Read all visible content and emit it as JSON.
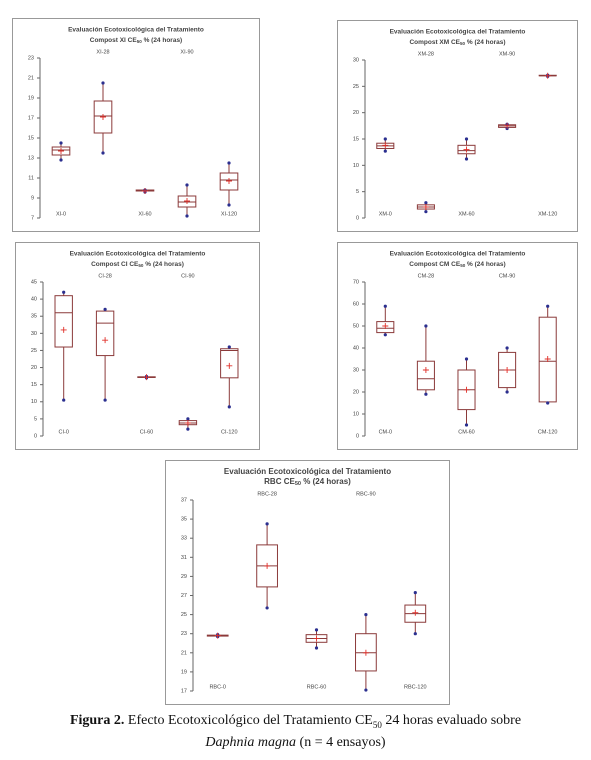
{
  "chart_data": [
    {
      "type": "box",
      "title": "Evaluación Ecotoxicológica del Tratamiento",
      "subtitle": [
        "Compost XI CE",
        "50",
        " % (24 horas)"
      ],
      "categories": [
        "XI-0",
        "XI-28",
        "XI-60",
        "XI-90",
        "XI-120"
      ],
      "boxes": [
        {
          "min": 12.8,
          "q1": 13.3,
          "median": 13.8,
          "q3": 14.1,
          "max": 14.5,
          "mean": 13.7
        },
        {
          "min": 13.5,
          "q1": 15.5,
          "median": 17.2,
          "q3": 18.7,
          "max": 20.5,
          "mean": 17.1
        },
        {
          "min": 9.6,
          "q1": 9.7,
          "median": 9.7,
          "q3": 9.8,
          "max": 9.8,
          "mean": 9.7
        },
        {
          "min": 7.2,
          "q1": 8.1,
          "median": 8.6,
          "q3": 9.2,
          "max": 10.3,
          "mean": 8.7
        },
        {
          "min": 8.3,
          "q1": 9.8,
          "median": 10.8,
          "q3": 11.5,
          "max": 12.5,
          "mean": 10.7
        }
      ],
      "ylim": [
        7,
        23
      ],
      "yticks": [
        7,
        9,
        11,
        13,
        15,
        17,
        19,
        21,
        23
      ],
      "color": "#8b3a3a",
      "whisker_color": "#2b2f8f",
      "mean_color": "#e0302a"
    },
    {
      "type": "box",
      "title": "Evaluación Ecotoxicológica del Tratamiento",
      "subtitle": [
        "Compost XM CE",
        "50",
        " % (24 horas)"
      ],
      "categories": [
        "XM-0",
        "XM-28",
        "XM-60",
        "XM-90",
        "XM-120"
      ],
      "boxes": [
        {
          "min": 12.7,
          "q1": 13.2,
          "median": 13.7,
          "q3": 14.2,
          "max": 15,
          "mean": 13.8
        },
        {
          "min": 1.2,
          "q1": 1.7,
          "median": 2.1,
          "q3": 2.5,
          "max": 2.9,
          "mean": 2.1
        },
        {
          "min": 11.2,
          "q1": 12.2,
          "median": 12.8,
          "q3": 13.8,
          "max": 15,
          "mean": 13
        },
        {
          "min": 17,
          "q1": 17.2,
          "median": 17.5,
          "q3": 17.7,
          "max": 17.8,
          "mean": 17.5
        },
        {
          "min": 26.9,
          "q1": 27,
          "median": 27,
          "q3": 27.1,
          "max": 27.1,
          "mean": 27
        }
      ],
      "ylim": [
        0,
        30
      ],
      "yticks": [
        0,
        5,
        10,
        15,
        20,
        25,
        30
      ],
      "color": "#8b3a3a",
      "whisker_color": "#2b2f8f",
      "mean_color": "#e0302a"
    },
    {
      "type": "box",
      "title": "Evaluación Ecotoxicológica del Tratamiento",
      "subtitle": [
        "Compost CI CE",
        "50",
        " % (24 horas)"
      ],
      "categories": [
        "CI-0",
        "CI-28",
        "CI-60",
        "CI-90",
        "CI-120"
      ],
      "boxes": [
        {
          "min": 10.5,
          "q1": 26,
          "median": 36,
          "q3": 41,
          "max": 42,
          "mean": 31
        },
        {
          "min": 10.5,
          "q1": 23.5,
          "median": 33,
          "q3": 36.5,
          "max": 37,
          "mean": 28
        },
        {
          "min": 17,
          "q1": 17.1,
          "median": 17.2,
          "q3": 17.3,
          "max": 17.4,
          "mean": 17.2
        },
        {
          "min": 2,
          "q1": 3.3,
          "median": 3.8,
          "q3": 4.5,
          "max": 5,
          "mean": 3.8
        },
        {
          "min": 8.5,
          "q1": 17,
          "median": 25,
          "q3": 25.5,
          "max": 26,
          "mean": 20.5
        }
      ],
      "ylim": [
        0,
        45
      ],
      "yticks": [
        0,
        5,
        10,
        15,
        20,
        25,
        30,
        35,
        40,
        45
      ],
      "color": "#8b3a3a",
      "whisker_color": "#2b2f8f",
      "mean_color": "#e0302a"
    },
    {
      "type": "box",
      "title": "Evaluación Ecotoxicológica del Tratamiento",
      "subtitle": [
        "Compost CM CE",
        "50",
        " % (24 horas)"
      ],
      "categories": [
        "CM-0",
        "CM-28",
        "CM-60",
        "CM-90",
        "CM-120"
      ],
      "boxes": [
        {
          "min": 46,
          "q1": 47,
          "median": 49,
          "q3": 52,
          "max": 59,
          "mean": 50
        },
        {
          "min": 19,
          "q1": 21,
          "median": 26,
          "q3": 34,
          "max": 50,
          "mean": 30
        },
        {
          "min": 5,
          "q1": 12,
          "median": 21,
          "q3": 30,
          "max": 35,
          "mean": 21
        },
        {
          "min": 20,
          "q1": 22,
          "median": 30,
          "q3": 38,
          "max": 40,
          "mean": 30
        },
        {
          "min": 15,
          "q1": 15.5,
          "median": 34,
          "q3": 54,
          "max": 59,
          "mean": 35
        }
      ],
      "ylim": [
        0,
        70
      ],
      "yticks": [
        0,
        10,
        20,
        30,
        40,
        50,
        60,
        70
      ],
      "color": "#8b3a3a",
      "whisker_color": "#2b2f8f",
      "mean_color": "#e0302a"
    },
    {
      "type": "box",
      "title": "Evaluación Ecotoxicológica del Tratamiento",
      "subtitle": [
        "RBC CE",
        "50",
        " % (24 horas)"
      ],
      "categories": [
        "RBC-0",
        "RBC-28",
        "RBC-60",
        "RBC-90",
        "RBC-120"
      ],
      "boxes": [
        {
          "min": 22.7,
          "q1": 22.75,
          "median": 22.8,
          "q3": 22.85,
          "max": 22.9,
          "mean": 22.8
        },
        {
          "min": 25.7,
          "q1": 27.9,
          "median": 30.1,
          "q3": 32.3,
          "max": 34.5,
          "mean": 30.1
        },
        {
          "min": 21.5,
          "q1": 22.1,
          "median": 22.5,
          "q3": 22.9,
          "max": 23.4,
          "mean": 22.5
        },
        {
          "min": 17.1,
          "q1": 19.1,
          "median": 21,
          "q3": 23,
          "max": 25,
          "mean": 21
        },
        {
          "min": 23,
          "q1": 24.2,
          "median": 25.1,
          "q3": 26,
          "max": 27.3,
          "mean": 25.2
        }
      ],
      "ylim": [
        17,
        37
      ],
      "yticks": [
        17,
        19,
        21,
        23,
        25,
        27,
        29,
        31,
        33,
        35,
        37
      ],
      "color": "#8b3a3a",
      "whisker_color": "#2b2f8f",
      "mean_color": "#e0302a"
    }
  ],
  "caption": {
    "label": "Figura 2.",
    "text": [
      "Efecto Ecotoxicológico del Tratamiento CE",
      "50",
      " 24 horas evaluado sobre"
    ],
    "species": "Daphnia magna",
    "rest": " (n = 4 ensayos)"
  }
}
